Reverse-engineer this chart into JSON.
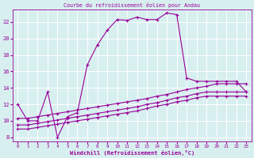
{
  "title": "Courbe du refroidissement éolien pour Andau",
  "xlabel": "Windchill (Refroidissement éolien,°C)",
  "bg_color": "#d8eff0",
  "grid_color": "#b8dfe0",
  "line_color": "#990099",
  "xlim": [
    -0.5,
    23.5
  ],
  "ylim": [
    7.5,
    23.5
  ],
  "yticks": [
    8,
    10,
    12,
    14,
    16,
    18,
    20,
    22
  ],
  "xticks": [
    0,
    1,
    2,
    3,
    4,
    5,
    6,
    7,
    8,
    9,
    10,
    11,
    12,
    13,
    14,
    15,
    16,
    17,
    18,
    19,
    20,
    21,
    22,
    23
  ],
  "series1_x": [
    0,
    1,
    2,
    3,
    4,
    5,
    6,
    7,
    8,
    9,
    10,
    11,
    12,
    13,
    14,
    15,
    16,
    17,
    18,
    19,
    20,
    21,
    22,
    23
  ],
  "series1_y": [
    12.0,
    10.0,
    10.0,
    13.5,
    8.0,
    10.5,
    11.0,
    16.8,
    19.2,
    21.0,
    22.3,
    22.2,
    22.6,
    22.3,
    22.3,
    23.1,
    22.9,
    15.2,
    14.8,
    14.8,
    14.8,
    14.8,
    14.8,
    13.5
  ],
  "series2_x": [
    0,
    1,
    2,
    3,
    4,
    5,
    6,
    7,
    8,
    9,
    10,
    11,
    12,
    13,
    14,
    15,
    16,
    17,
    18,
    19,
    20,
    21,
    22,
    23
  ],
  "series2_y": [
    10.3,
    10.3,
    10.5,
    10.7,
    10.9,
    11.1,
    11.3,
    11.5,
    11.7,
    11.9,
    12.1,
    12.3,
    12.5,
    12.7,
    13.0,
    13.2,
    13.5,
    13.8,
    14.0,
    14.2,
    14.5,
    14.5,
    14.5,
    14.5
  ],
  "series3_x": [
    0,
    1,
    2,
    3,
    4,
    5,
    6,
    7,
    8,
    9,
    10,
    11,
    12,
    13,
    14,
    15,
    16,
    17,
    18,
    19,
    20,
    21,
    22,
    23
  ],
  "series3_y": [
    9.5,
    9.5,
    9.7,
    9.9,
    10.1,
    10.3,
    10.5,
    10.7,
    10.9,
    11.1,
    11.3,
    11.5,
    11.7,
    12.0,
    12.2,
    12.5,
    12.8,
    13.0,
    13.3,
    13.5,
    13.5,
    13.5,
    13.5,
    13.5
  ],
  "series4_x": [
    0,
    1,
    2,
    3,
    4,
    5,
    6,
    7,
    8,
    9,
    10,
    11,
    12,
    13,
    14,
    15,
    16,
    17,
    18,
    19,
    20,
    21,
    22,
    23
  ],
  "series4_y": [
    9.0,
    9.0,
    9.2,
    9.4,
    9.6,
    9.8,
    10.0,
    10.2,
    10.4,
    10.6,
    10.8,
    11.0,
    11.2,
    11.5,
    11.8,
    12.0,
    12.3,
    12.5,
    12.8,
    13.0,
    13.0,
    13.0,
    13.0,
    13.0
  ]
}
